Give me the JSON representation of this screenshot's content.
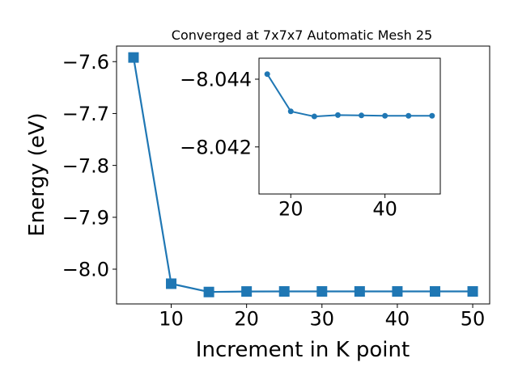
{
  "colors": {
    "series": "#1f77b4",
    "axis": "#000000",
    "background": "#ffffff"
  },
  "chart_data": [
    {
      "type": "line",
      "title": "Converged at 7x7x7 Automatic Mesh 25",
      "xlabel": "Increment in K point",
      "ylabel": "Energy (eV)",
      "marker": "square",
      "x": [
        5,
        10,
        15,
        20,
        25,
        30,
        35,
        40,
        45,
        50
      ],
      "y": [
        -7.592,
        -8.028,
        -8.044,
        -8.043,
        -8.0429,
        -8.0429,
        -8.0429,
        -8.0429,
        -8.0429,
        -8.0429
      ],
      "xlim": [
        2.75,
        52.25
      ],
      "ylim": [
        -8.067,
        -7.57
      ],
      "xticks": [
        10,
        20,
        30,
        40,
        50
      ],
      "xtick_labels": [
        "10",
        "20",
        "30",
        "40",
        "50"
      ],
      "yticks": [
        -7.6,
        -7.7,
        -7.8,
        -7.9,
        -8.0
      ],
      "ytick_labels": [
        "−7.6",
        "−7.7",
        "−7.8",
        "−7.9",
        "−8.0"
      ],
      "grid": false
    },
    {
      "type": "line",
      "title": "",
      "inset": true,
      "marker": "circle",
      "y_inverted": true,
      "x": [
        15,
        20,
        25,
        30,
        35,
        40,
        45,
        50
      ],
      "y": [
        -8.04415,
        -8.04305,
        -8.0429,
        -8.04294,
        -8.04293,
        -8.04292,
        -8.04292,
        -8.04292
      ],
      "xlim": [
        13.25,
        51.75
      ],
      "ylim": [
        -8.04462,
        -8.04061
      ],
      "xticks": [
        20,
        40
      ],
      "xtick_labels": [
        "20",
        "40"
      ],
      "yticks": [
        -8.044,
        -8.042
      ],
      "ytick_labels": [
        "−8.044",
        "−8.042"
      ],
      "grid": false
    }
  ]
}
